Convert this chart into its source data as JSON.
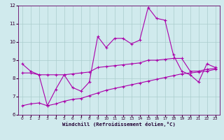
{
  "xlabel": "Windchill (Refroidissement éolien,°C)",
  "x": [
    0,
    1,
    2,
    3,
    4,
    5,
    6,
    7,
    8,
    9,
    10,
    11,
    12,
    13,
    14,
    15,
    16,
    17,
    18,
    19,
    20,
    21,
    22,
    23
  ],
  "line1": [
    8.8,
    8.4,
    8.2,
    6.5,
    7.4,
    8.2,
    7.5,
    7.3,
    7.8,
    10.3,
    9.7,
    10.2,
    10.2,
    9.9,
    10.1,
    11.9,
    11.3,
    11.2,
    9.3,
    8.4,
    8.2,
    7.8,
    8.8,
    8.6
  ],
  "line2": [
    8.3,
    8.3,
    8.2,
    8.2,
    8.2,
    8.2,
    8.25,
    8.3,
    8.35,
    8.6,
    8.65,
    8.7,
    8.75,
    8.8,
    8.85,
    9.0,
    9.0,
    9.05,
    9.1,
    9.1,
    8.4,
    8.4,
    8.5,
    8.55
  ],
  "line3": [
    6.5,
    6.6,
    6.65,
    6.5,
    6.6,
    6.75,
    6.85,
    6.9,
    7.05,
    7.2,
    7.35,
    7.45,
    7.55,
    7.65,
    7.75,
    7.85,
    7.95,
    8.05,
    8.15,
    8.25,
    8.3,
    8.35,
    8.4,
    8.5
  ],
  "line_color": "#aa00aa",
  "bg_color": "#d0eaed",
  "grid_color": "#aacccc",
  "ylim": [
    6,
    12
  ],
  "xlim_min": -0.5,
  "xlim_max": 23.5,
  "yticks": [
    6,
    7,
    8,
    9,
    10,
    11,
    12
  ],
  "xticks": [
    0,
    1,
    2,
    3,
    4,
    5,
    6,
    7,
    8,
    9,
    10,
    11,
    12,
    13,
    14,
    15,
    16,
    17,
    18,
    19,
    20,
    21,
    22,
    23
  ]
}
